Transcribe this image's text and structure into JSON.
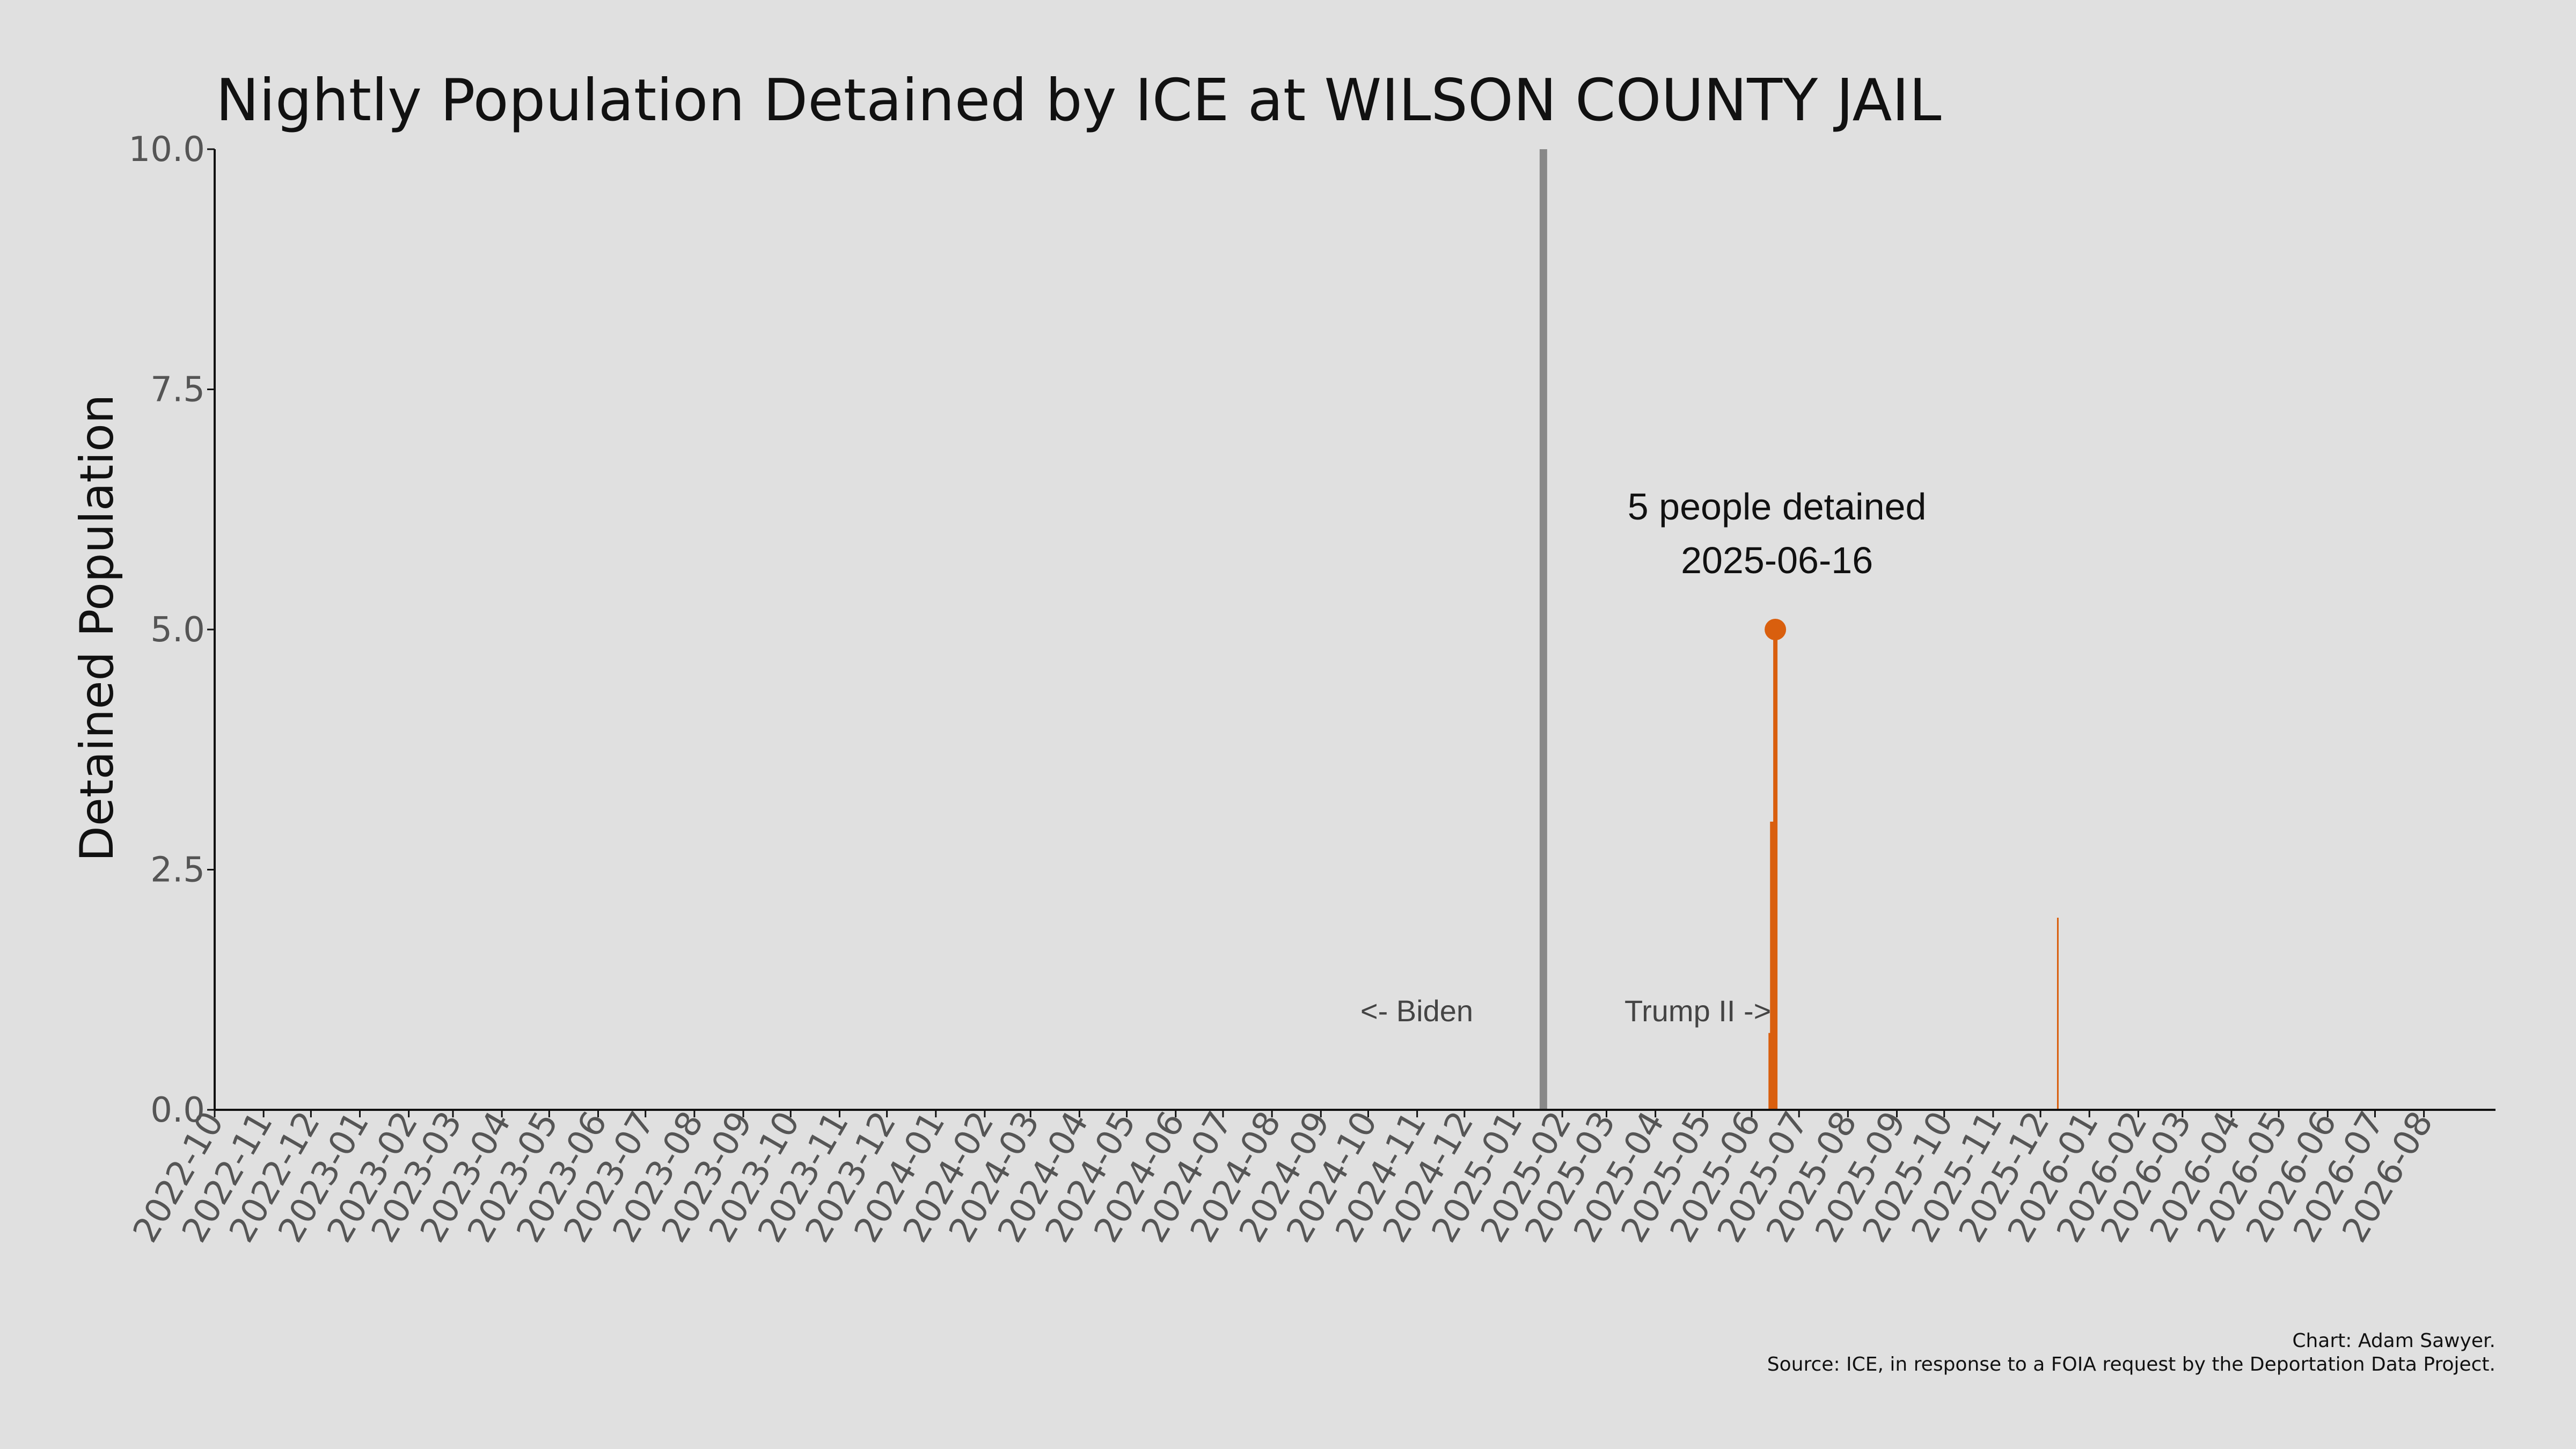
{
  "chart_data": {
    "type": "bar",
    "title": "Nightly Population Detained by ICE at WILSON COUNTY JAIL",
    "xlabel": "",
    "ylabel": "Detained Population",
    "ylim": [
      0,
      10
    ],
    "yticks": [
      "0.0",
      "2.5",
      "5.0",
      "7.5",
      "10.0"
    ],
    "xlim": [
      "2022-10-01",
      "2026-08-31"
    ],
    "xticks": [
      "2022-10",
      "2022-11",
      "2022-12",
      "2023-01",
      "2023-02",
      "2023-03",
      "2023-04",
      "2023-05",
      "2023-06",
      "2023-07",
      "2023-08",
      "2023-09",
      "2023-10",
      "2023-11",
      "2023-12",
      "2024-01",
      "2024-02",
      "2024-03",
      "2024-04",
      "2024-05",
      "2024-06",
      "2024-07",
      "2024-08",
      "2024-09",
      "2024-10",
      "2024-11",
      "2024-12",
      "2025-01",
      "2025-02",
      "2025-03",
      "2025-04",
      "2025-05",
      "2025-06",
      "2025-07",
      "2025-08",
      "2025-09",
      "2025-10",
      "2025-11",
      "2025-12",
      "2026-01",
      "2026-02",
      "2026-03",
      "2026-04",
      "2026-05",
      "2026-06",
      "2026-07",
      "2026-08"
    ],
    "grid": false,
    "legend": "none",
    "series": [
      {
        "color": "#d95f0e",
        "points": [
          {
            "date": "2025-06-13",
            "value": 0.8
          },
          {
            "date": "2025-06-14",
            "value": 3.0
          },
          {
            "date": "2025-06-15",
            "value": 1.2
          },
          {
            "date": "2025-06-16",
            "value": 5.0
          },
          {
            "date": "2025-12-12",
            "value": 2.0
          }
        ]
      }
    ],
    "reference_line": {
      "date": "2025-01-20",
      "color": "#888888"
    },
    "era_labels": {
      "before": "<- Biden",
      "after": "Trump II ->"
    },
    "highlight": {
      "date": "2025-06-16",
      "value": 5,
      "label_line1": "5 people detained",
      "label_line2": "2025-06-16",
      "color": "#d95f0e"
    },
    "credit": {
      "line1": "Chart: Adam Sawyer.",
      "line2": "Source: ICE, in response to a FOIA request by the Deportation Data Project."
    }
  }
}
